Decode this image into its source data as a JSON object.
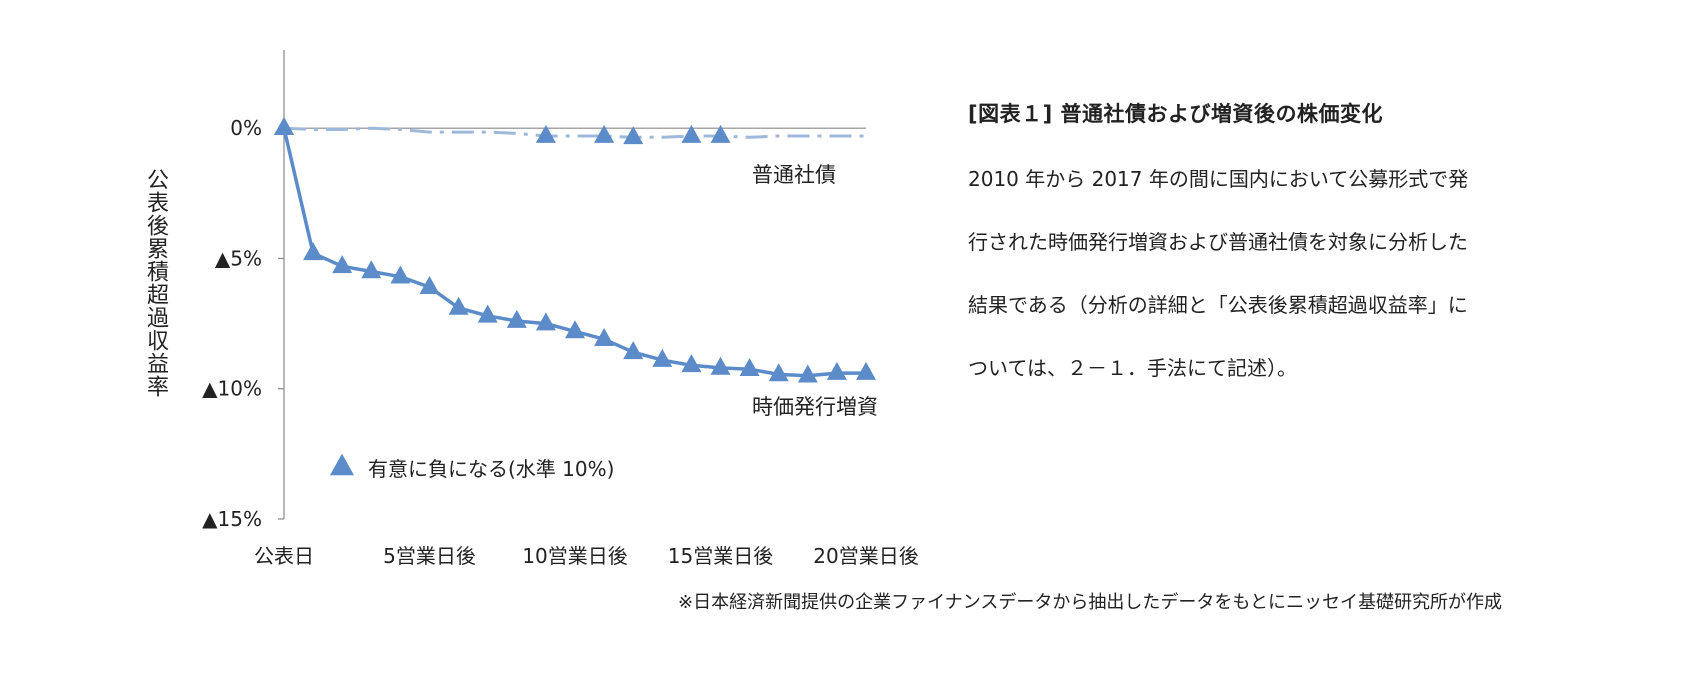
{
  "chart_data": {
    "type": "line",
    "ylabel": "公表後累積超過収益率",
    "y_ticks": [
      {
        "value": 0,
        "label": "0%"
      },
      {
        "value": -5,
        "label": "▲5%"
      },
      {
        "value": -10,
        "label": "▲10%"
      },
      {
        "value": -15,
        "label": "▲15%"
      }
    ],
    "x_ticks": [
      {
        "value": 0,
        "label": "公表日"
      },
      {
        "value": 5,
        "label": "5営業日後"
      },
      {
        "value": 10,
        "label": "10営業日後"
      },
      {
        "value": 15,
        "label": "15営業日後"
      },
      {
        "value": 20,
        "label": "20営業日後"
      }
    ],
    "xlim": [
      0,
      20
    ],
    "ylim": [
      -15,
      3
    ],
    "x": [
      0,
      1,
      2,
      3,
      4,
      5,
      6,
      7,
      8,
      9,
      10,
      11,
      12,
      13,
      14,
      15,
      16,
      17,
      18,
      19,
      20
    ],
    "series": [
      {
        "name": "普通社債",
        "style": "dash-dot",
        "color": "#9db8d9",
        "values": [
          0,
          -0.05,
          -0.05,
          0,
          -0.05,
          -0.15,
          -0.15,
          -0.15,
          -0.2,
          -0.3,
          -0.3,
          -0.3,
          -0.35,
          -0.35,
          -0.3,
          -0.3,
          -0.35,
          -0.3,
          -0.3,
          -0.3,
          -0.3
        ],
        "significant": [
          0,
          9,
          11,
          12,
          14,
          15
        ]
      },
      {
        "name": "時価発行増資",
        "style": "solid",
        "color": "#5b8cc9",
        "values": [
          0,
          -4.8,
          -5.3,
          -5.5,
          -5.7,
          -6.1,
          -6.9,
          -7.2,
          -7.4,
          -7.5,
          -7.8,
          -8.1,
          -8.6,
          -8.9,
          -9.1,
          -9.2,
          -9.25,
          -9.45,
          -9.5,
          -9.4,
          -9.4
        ],
        "significant": [
          0,
          1,
          2,
          3,
          4,
          5,
          6,
          7,
          8,
          9,
          10,
          11,
          12,
          13,
          14,
          15,
          16,
          17,
          18,
          19,
          20
        ]
      }
    ],
    "marker_legend": "有意に負になる(水準 10%)",
    "marker_color": "#5b8cc9",
    "axis_color": "#888888"
  },
  "panel": {
    "title": "[図表１] 普通社債および増資後の株価変化",
    "body_lines": [
      "2010 年から 2017 年の間に国内において公募形式で発",
      "行された時価発行増資および普通社債を対象に分析した",
      "結果である（分析の詳細と「公表後累積超過収益率」に",
      "ついては、２－１．手法にて記述）。"
    ]
  },
  "source_note": "※日本経済新聞提供の企業ファイナンスデータから抽出したデータをもとにニッセイ基礎研究所が作成"
}
